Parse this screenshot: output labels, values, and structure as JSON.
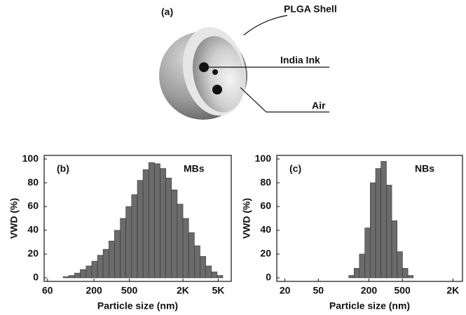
{
  "diagram": {
    "panel_label": "(a)",
    "labels": [
      "PLGA Shell",
      "India Ink",
      "Air"
    ]
  },
  "chart_data": [
    {
      "type": "histogram",
      "panel_label": "(b)",
      "label": "MBs",
      "xlabel": "Particle size (nm)",
      "ylabel": "VWD (%)",
      "log_x": true,
      "color": "#6b6b6b",
      "bins": [
        90,
        104,
        121,
        140,
        163,
        189,
        219,
        253,
        294,
        340,
        395,
        457,
        530,
        615,
        712,
        826,
        957,
        1109,
        1286,
        1490,
        1727,
        2002,
        2321,
        2690,
        3118,
        3614,
        4189,
        4855,
        5627
      ],
      "values": [
        1,
        2,
        4,
        7,
        10,
        14,
        19,
        24,
        31,
        40,
        50,
        60,
        70,
        82,
        91,
        97,
        96,
        92,
        84,
        74,
        62,
        50,
        38,
        27,
        18,
        10,
        5,
        2
      ],
      "xlim": [
        55,
        7000
      ],
      "xticks": [
        60,
        200,
        500,
        {
          "value": 2000,
          "label": "2K"
        },
        {
          "value": 5000,
          "label": "5K"
        }
      ],
      "ylim": [
        -3,
        103
      ],
      "yticks": [
        0,
        20,
        40,
        60,
        80,
        100
      ]
    },
    {
      "type": "histogram",
      "panel_label": "(c)",
      "label": "NBs",
      "xlabel": "Particle size (nm)",
      "ylabel": "VWD (%)",
      "log_x": true,
      "color": "#6b6b6b",
      "bins": [
        115,
        133,
        154,
        179,
        207,
        240,
        278,
        323,
        374,
        433,
        502,
        582,
        675
      ],
      "values": [
        2,
        8,
        20,
        42,
        80,
        92,
        98,
        78,
        48,
        22,
        8,
        2
      ],
      "xlim": [
        16,
        2600
      ],
      "xticks": [
        20,
        50,
        200,
        500,
        {
          "value": 2000,
          "label": "2K"
        }
      ],
      "ylim": [
        -3,
        103
      ],
      "yticks": [
        0,
        20,
        40,
        60,
        80,
        100
      ]
    }
  ]
}
